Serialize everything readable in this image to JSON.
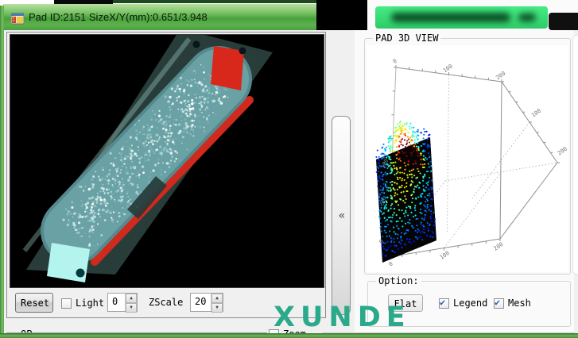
{
  "titlebar": {
    "title": "Pad ID:2151  SizeX/Y(mm):0.651/3.948"
  },
  "left_panel": {
    "reset_label": "Reset",
    "light_label": "Light",
    "light_checked": false,
    "light_value": "0",
    "zscale_label": "ZScale",
    "zscale_value": "20"
  },
  "splitter": {
    "glyph": "«"
  },
  "pad3d": {
    "title": "PAD 3D VIEW"
  },
  "options": {
    "title": "Option:",
    "flat_label": "Flat",
    "legend_label": "Legend",
    "legend_checked": true,
    "mesh_label": "Mesh",
    "mesh_checked": true
  },
  "watermark": {
    "text": "XUNDE",
    "color": "#2aa98b"
  },
  "bottom": {
    "left_label": "OP",
    "zoom_label": "Zoom"
  },
  "colors": {
    "window_green": "#5bac4e",
    "censor_green": "#3ce87b",
    "watermark_teal": "#2aa98b",
    "pad_red": "#cf2a1d",
    "pad_cyan": "#b3f4ef",
    "check_blue": "#2b5fae"
  },
  "chart_data": {
    "type": "scatter",
    "projection": "3d",
    "title": "PAD 3D VIEW",
    "grid": true,
    "legend_position": "none",
    "colormap": "jet",
    "axes": {
      "x_top_ticks": [
        "0",
        "100",
        "200"
      ],
      "y_right_ticks": [
        "100",
        "200"
      ],
      "x_bottom_ticks": [
        "0",
        "100",
        "200"
      ],
      "z_left_ticks": [
        "100",
        "50",
        "0"
      ],
      "x_range": [
        0,
        200
      ],
      "y_range": [
        0,
        250
      ],
      "z_range": [
        0,
        100
      ]
    },
    "cloud": {
      "count": 644,
      "cols": 14,
      "rows": 46,
      "ridge": {
        "u": 0.5,
        "v": 0.28,
        "height": 0.62
      },
      "hotspot": {
        "u": 0.7,
        "v": 0.38,
        "height": 0.18,
        "color_boost": 0.85
      },
      "cyan_zone": {
        "u": 0.4,
        "v": 0.68,
        "height": 0.22
      },
      "base_patch_color": "#050505"
    }
  }
}
